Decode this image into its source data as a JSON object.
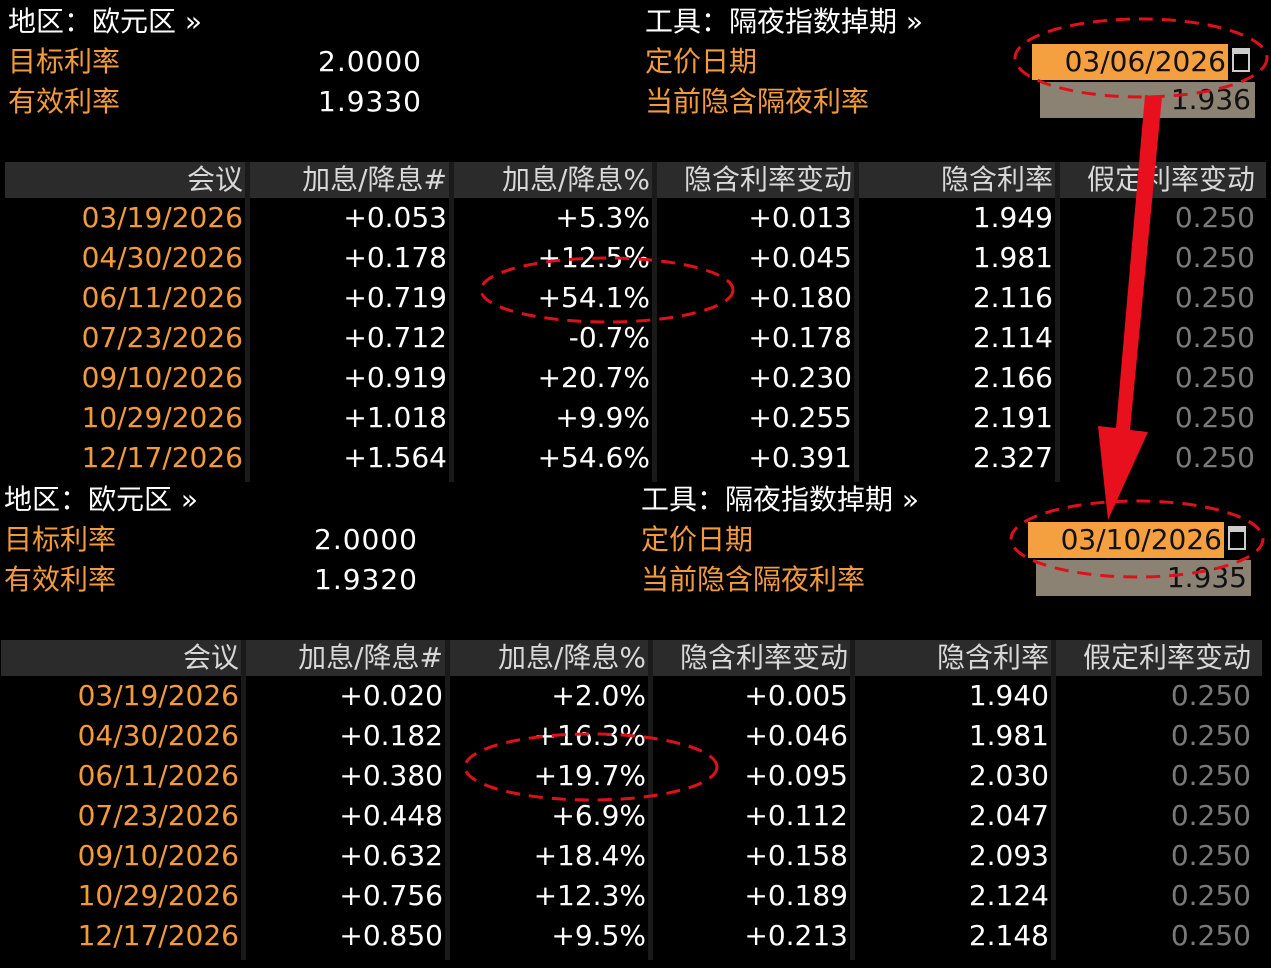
{
  "panels": [
    {
      "header": {
        "region": "地区：欧元区 »",
        "tool": "工具：隔夜指数掉期 »",
        "target_rate_label": "目标利率",
        "target_rate": "2.0000",
        "effective_rate_label": "有效利率",
        "effective_rate": "1.9330",
        "pricing_date_label": "定价日期",
        "pricing_date": "03/06/2026",
        "implied_overnight_label": "当前隐含隔夜利率",
        "implied_overnight_rate": "1.936"
      },
      "table": {
        "columns": [
          "会议",
          "加息/降息#",
          "加息/降息%",
          "隐含利率变动",
          "隐含利率",
          "假定利率变动"
        ],
        "rows": [
          [
            "03/19/2026",
            "+0.053",
            "+5.3%",
            "+0.013",
            "1.949",
            "0.250"
          ],
          [
            "04/30/2026",
            "+0.178",
            "+12.5%",
            "+0.045",
            "1.981",
            "0.250"
          ],
          [
            "06/11/2026",
            "+0.719",
            "+54.1%",
            "+0.180",
            "2.116",
            "0.250"
          ],
          [
            "07/23/2026",
            "+0.712",
            "-0.7%",
            "+0.178",
            "2.114",
            "0.250"
          ],
          [
            "09/10/2026",
            "+0.919",
            "+20.7%",
            "+0.230",
            "2.166",
            "0.250"
          ],
          [
            "10/29/2026",
            "+1.018",
            "+9.9%",
            "+0.255",
            "2.191",
            "0.250"
          ],
          [
            "12/17/2026",
            "+1.564",
            "+54.6%",
            "+0.391",
            "2.327",
            "0.250"
          ]
        ]
      }
    },
    {
      "header": {
        "region": "地区：欧元区 »",
        "tool": "工具：隔夜指数掉期 »",
        "target_rate_label": "目标利率",
        "target_rate": "2.0000",
        "effective_rate_label": "有效利率",
        "effective_rate": "1.9320",
        "pricing_date_label": "定价日期",
        "pricing_date": "03/10/2026",
        "implied_overnight_label": "当前隐含隔夜利率",
        "implied_overnight_rate": "1.935"
      },
      "table": {
        "columns": [
          "会议",
          "加息/降息#",
          "加息/降息%",
          "隐含利率变动",
          "隐含利率",
          "假定利率变动"
        ],
        "rows": [
          [
            "03/19/2026",
            "+0.020",
            "+2.0%",
            "+0.005",
            "1.940",
            "0.250"
          ],
          [
            "04/30/2026",
            "+0.182",
            "+16.3%",
            "+0.046",
            "1.981",
            "0.250"
          ],
          [
            "06/11/2026",
            "+0.380",
            "+19.7%",
            "+0.095",
            "2.030",
            "0.250"
          ],
          [
            "07/23/2026",
            "+0.448",
            "+6.9%",
            "+0.112",
            "2.047",
            "0.250"
          ],
          [
            "09/10/2026",
            "+0.632",
            "+18.4%",
            "+0.158",
            "2.093",
            "0.250"
          ],
          [
            "10/29/2026",
            "+0.756",
            "+12.3%",
            "+0.189",
            "2.124",
            "0.250"
          ],
          [
            "12/17/2026",
            "+0.850",
            "+9.5%",
            "+0.213",
            "2.148",
            "0.250"
          ]
        ]
      }
    }
  ]
}
